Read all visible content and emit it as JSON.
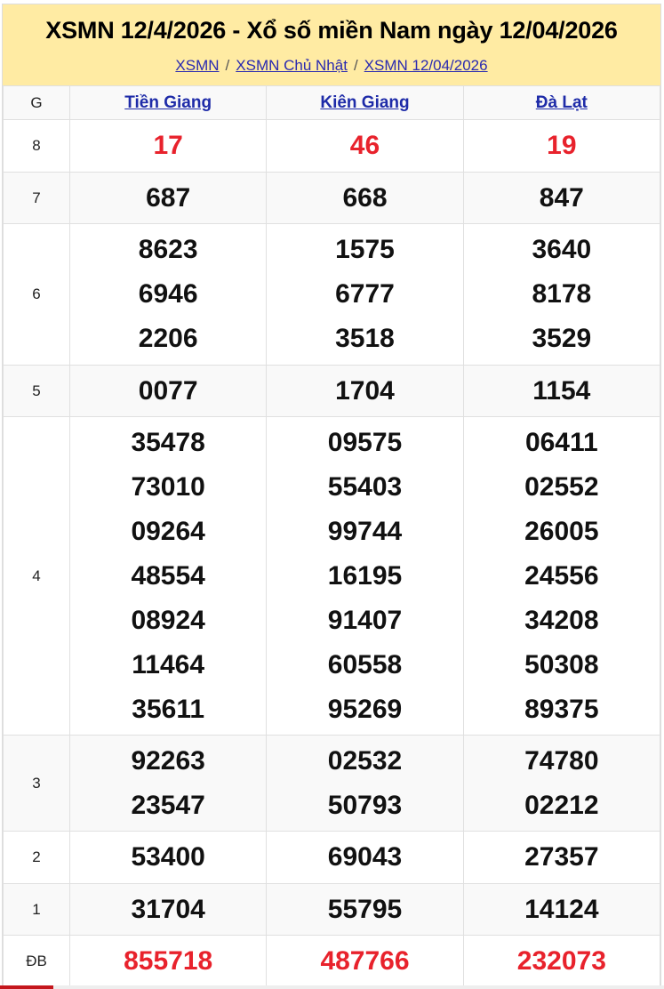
{
  "title": "XSMN 12/4/2026 - Xổ số miền Nam ngày 12/04/2026",
  "breadcrumb": [
    "XSMN",
    "XSMN Chủ Nhật",
    "XSMN 12/04/2026"
  ],
  "header": {
    "g": "G",
    "provinces": [
      "Tiền Giang",
      "Kiên Giang",
      "Đà Lạt"
    ]
  },
  "colors": {
    "header_bg": "#ffeba3",
    "red": "#e8222c",
    "link": "#1e2ba8"
  },
  "rows": [
    {
      "label": "8",
      "red": true,
      "cols": [
        [
          "17"
        ],
        [
          "46"
        ],
        [
          "19"
        ]
      ]
    },
    {
      "label": "7",
      "cols": [
        [
          "687"
        ],
        [
          "668"
        ],
        [
          "847"
        ]
      ]
    },
    {
      "label": "6",
      "cols": [
        [
          "8623",
          "6946",
          "2206"
        ],
        [
          "1575",
          "6777",
          "3518"
        ],
        [
          "3640",
          "8178",
          "3529"
        ]
      ]
    },
    {
      "label": "5",
      "cols": [
        [
          "0077"
        ],
        [
          "1704"
        ],
        [
          "1154"
        ]
      ]
    },
    {
      "label": "4",
      "cols": [
        [
          "35478",
          "73010",
          "09264",
          "48554",
          "08924",
          "11464",
          "35611"
        ],
        [
          "09575",
          "55403",
          "99744",
          "16195",
          "91407",
          "60558",
          "95269"
        ],
        [
          "06411",
          "02552",
          "26005",
          "24556",
          "34208",
          "50308",
          "89375"
        ]
      ]
    },
    {
      "label": "3",
      "cols": [
        [
          "92263",
          "23547"
        ],
        [
          "02532",
          "50793"
        ],
        [
          "74780",
          "02212"
        ]
      ]
    },
    {
      "label": "2",
      "cols": [
        [
          "53400"
        ],
        [
          "69043"
        ],
        [
          "27357"
        ]
      ]
    },
    {
      "label": "1",
      "cols": [
        [
          "31704"
        ],
        [
          "55795"
        ],
        [
          "14124"
        ]
      ]
    },
    {
      "label": "ĐB",
      "red": true,
      "cols": [
        [
          "855718"
        ],
        [
          "487766"
        ],
        [
          "232073"
        ]
      ]
    }
  ]
}
